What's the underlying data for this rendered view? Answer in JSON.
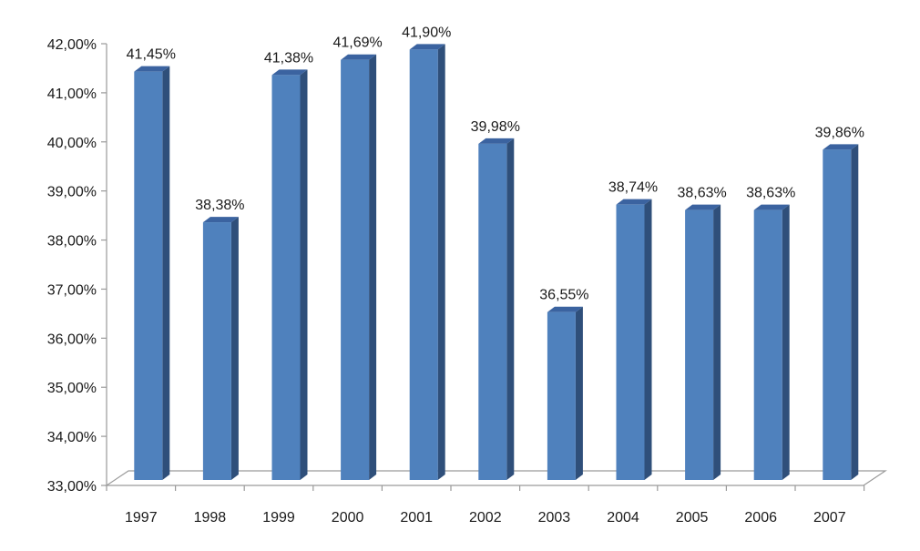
{
  "chart_data": {
    "type": "bar",
    "style": "3d-column",
    "categories": [
      "1997",
      "1998",
      "1999",
      "2000",
      "2001",
      "2002",
      "2003",
      "2004",
      "2005",
      "2006",
      "2007"
    ],
    "values": [
      41.45,
      38.38,
      41.38,
      41.69,
      41.9,
      39.98,
      36.55,
      38.74,
      38.63,
      38.63,
      39.86
    ],
    "value_labels": [
      "41,45%",
      "38,38%",
      "41,38%",
      "41,69%",
      "41,90%",
      "39,98%",
      "36,55%",
      "38,74%",
      "38,63%",
      "38,63%",
      "39,86%"
    ],
    "y_ticks": [
      "33,00%",
      "34,00%",
      "35,00%",
      "36,00%",
      "37,00%",
      "38,00%",
      "39,00%",
      "40,00%",
      "41,00%",
      "42,00%"
    ],
    "ylim": [
      33,
      42
    ],
    "unit": "%",
    "grid": false,
    "legend": "none",
    "colors": {
      "bar_front": "#4f81bd",
      "bar_side": "#2f4f7a",
      "bar_top": "#3b63a0",
      "axis": "#9a9a9a",
      "text": "#1a1a1a"
    }
  }
}
